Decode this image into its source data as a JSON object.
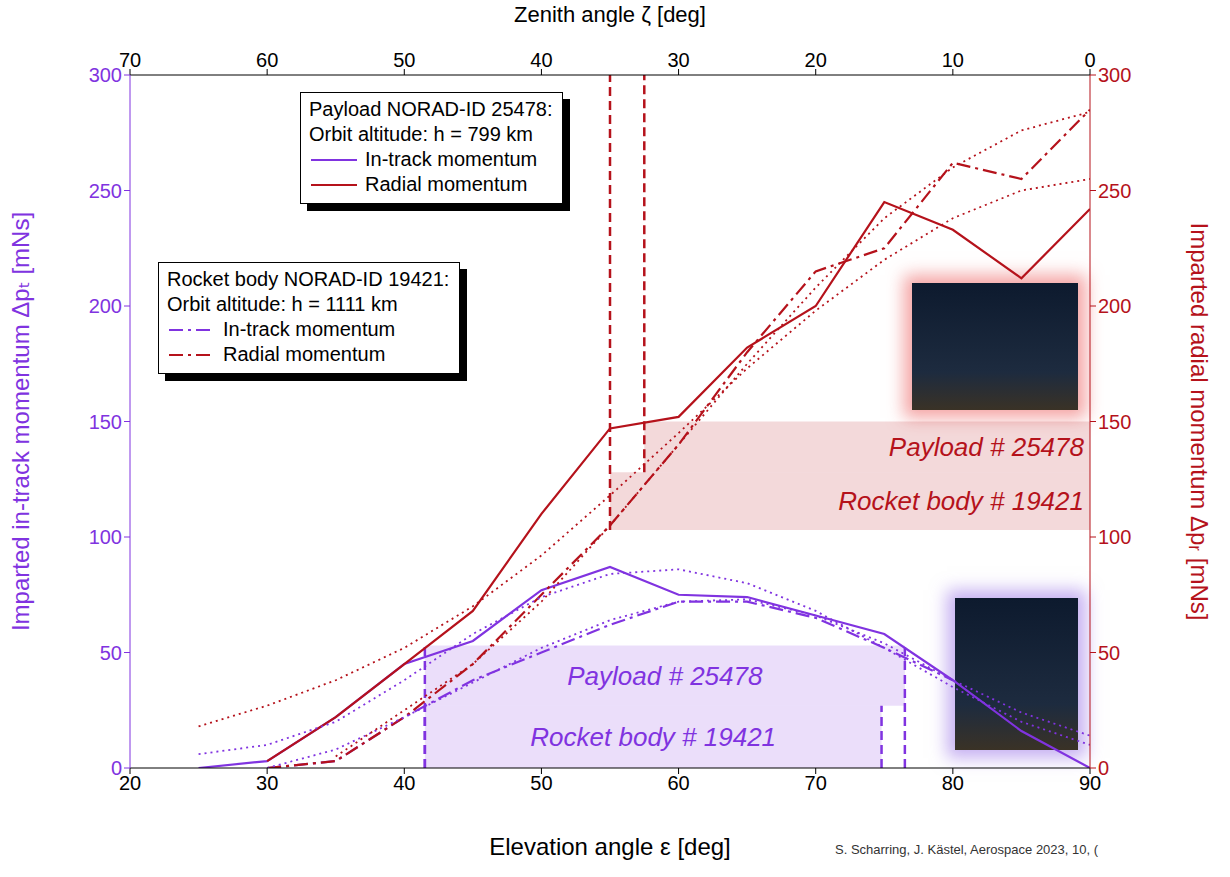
{
  "chart_data": {
    "type": "line",
    "xlabel": "Elevation angle ε [deg]",
    "x2label": "Zenith angle ζ [deg]",
    "ylabel": "Imparted in-track momentum Δpₜ [mNs]",
    "y2label": "Imparted radial momentum Δpᵣ [mNs]",
    "xlim": [
      20,
      90
    ],
    "xticks": [
      20,
      30,
      40,
      50,
      60,
      70,
      80,
      90
    ],
    "x2lim": [
      70,
      0
    ],
    "x2ticks": [
      70,
      60,
      50,
      40,
      30,
      20,
      10,
      0
    ],
    "ylim": [
      0,
      300
    ],
    "yticks": [
      0,
      50,
      100,
      150,
      200,
      250,
      300
    ],
    "y2lim": [
      0,
      300
    ],
    "y2ticks": [
      0,
      50,
      100,
      150,
      200,
      250,
      300
    ],
    "grid": false,
    "legend_groups": [
      {
        "title": "Payload NORAD-ID 25478:",
        "subtitle": "Orbit altitude: h = 799 km"
      },
      {
        "title": "Rocket body NORAD-ID 19421:",
        "subtitle": "Orbit altitude: h = 1111 km"
      }
    ],
    "series": [
      {
        "name": "In-track momentum",
        "group": "Payload NORAD-ID 25478:",
        "color": "#8033e0",
        "line_style": "solid",
        "x": [
          25,
          30,
          35,
          40,
          45,
          50,
          55,
          60,
          65,
          70,
          75,
          80,
          85,
          90
        ],
        "values": [
          0,
          3,
          22,
          45,
          55,
          77,
          87,
          75,
          74,
          66,
          58,
          38,
          16,
          0
        ]
      },
      {
        "name": "Radial momentum",
        "group": "Payload NORAD-ID 25478:",
        "color": "#b5121b",
        "line_style": "solid",
        "axis": "y2",
        "x": [
          30,
          35,
          40,
          45,
          50,
          55,
          60,
          65,
          70,
          75,
          80,
          85,
          90
        ],
        "values": [
          3,
          22,
          45,
          68,
          110,
          147,
          152,
          182,
          200,
          245,
          233,
          212,
          242
        ]
      },
      {
        "name": "In-track momentum",
        "group": "Rocket body NORAD-ID 19421:",
        "color": "#8033e0",
        "line_style": "dashdot",
        "x": [
          30,
          35,
          40,
          45,
          50,
          55,
          60,
          65,
          70,
          75,
          80
        ],
        "values": [
          0,
          3,
          22,
          38,
          50,
          62,
          72,
          72,
          65,
          52,
          38
        ]
      },
      {
        "name": "Radial momentum",
        "group": "Rocket body NORAD-ID 19421:",
        "color": "#b5121b",
        "line_style": "dashdot",
        "axis": "y2",
        "x": [
          30,
          35,
          40,
          45,
          50,
          55,
          60,
          65,
          70,
          75,
          80,
          85,
          90
        ],
        "values": [
          0,
          3,
          22,
          45,
          75,
          105,
          140,
          180,
          215,
          225,
          262,
          255,
          285
        ]
      },
      {
        "group": "Payload NORAD-ID 25478:",
        "color": "#8033e0",
        "line_style": "dotted",
        "x": [
          25,
          30,
          35,
          40,
          45,
          50,
          55,
          60,
          65,
          70,
          75,
          80,
          85,
          90
        ],
        "values": [
          6,
          10,
          20,
          38,
          58,
          74,
          84,
          86,
          80,
          68,
          52,
          35,
          20,
          10
        ]
      },
      {
        "group": "Rocket body NORAD-ID 19421:",
        "color": "#8033e0",
        "line_style": "dotted",
        "x": [
          30,
          35,
          40,
          45,
          50,
          55,
          60,
          65,
          70,
          75,
          80,
          85,
          90
        ],
        "values": [
          0,
          8,
          22,
          37,
          52,
          64,
          72,
          73,
          66,
          54,
          38,
          24,
          14
        ]
      },
      {
        "group": "Payload NORAD-ID 25478:",
        "color": "#b5121b",
        "line_style": "dotted",
        "axis": "y2",
        "x": [
          25,
          30,
          35,
          40,
          45,
          50,
          55,
          60,
          65,
          70,
          75,
          80,
          85,
          90
        ],
        "values": [
          18,
          27,
          38,
          52,
          70,
          92,
          118,
          145,
          173,
          198,
          220,
          238,
          250,
          255
        ]
      },
      {
        "group": "Rocket body NORAD-ID 19421:",
        "color": "#b5121b",
        "line_style": "dotted",
        "axis": "y2",
        "x": [
          35,
          40,
          45,
          50,
          55,
          60,
          65,
          70,
          75,
          80,
          85,
          90
        ],
        "values": [
          5,
          25,
          45,
          72,
          105,
          140,
          175,
          208,
          238,
          260,
          276,
          284
        ]
      }
    ],
    "annotations": [
      {
        "text": "Payload # 25478",
        "x_range": [
          57.5,
          90
        ],
        "y_range": [
          128,
          150
        ],
        "axis": "y2",
        "color": "#b5121b"
      },
      {
        "text": "Rocket body # 19421",
        "x_range": [
          55,
          90
        ],
        "y_range": [
          103,
          128
        ],
        "axis": "y2",
        "color": "#b5121b"
      },
      {
        "text": "Payload # 25478",
        "x_range": [
          41.5,
          76.5
        ],
        "y_range": [
          27,
          53
        ],
        "axis": "y",
        "color": "#8033e0"
      },
      {
        "text": "Rocket body # 19421",
        "x_range": [
          41.5,
          74.8
        ],
        "y_range": [
          0,
          27
        ],
        "axis": "y",
        "color": "#8033e0"
      }
    ],
    "source": "S. Scharring, J. Kästel, Aerospace 2023, 10, ("
  }
}
